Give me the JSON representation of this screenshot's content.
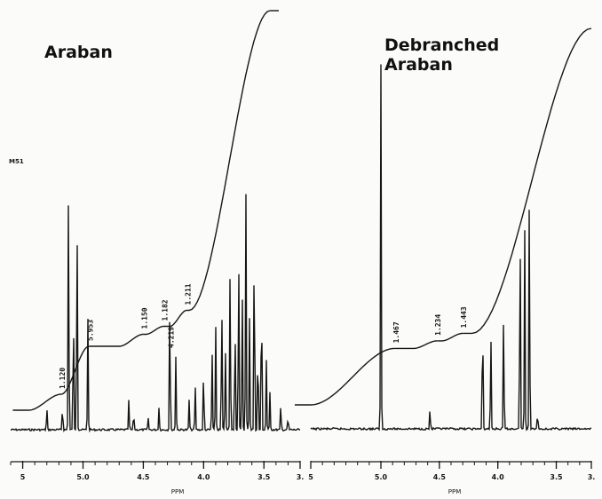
{
  "chart_data": [
    {
      "type": "line",
      "title": "Araban",
      "xlabel": "PPM",
      "x_unit_label": "PPM",
      "y_marker_label": "M51",
      "x_direction": "reversed",
      "xlim": [
        5.6,
        3.2
      ],
      "ticks": [
        {
          "value": 5.5,
          "label": "5"
        },
        {
          "value": 5.0,
          "label": "5.0"
        },
        {
          "value": 4.5,
          "label": "4.5"
        },
        {
          "value": 4.0,
          "label": "4.0"
        },
        {
          "value": 3.5,
          "label": "3.5"
        },
        {
          "value": 3.2,
          "label": "3."
        }
      ],
      "peaks": [
        {
          "ppm": 5.3,
          "height": 0.09
        },
        {
          "ppm": 5.17,
          "height": 0.1
        },
        {
          "ppm": 5.12,
          "height": 1.0
        },
        {
          "ppm": 5.08,
          "height": 0.52
        },
        {
          "ppm": 5.05,
          "height": 0.93
        },
        {
          "ppm": 4.96,
          "height": 0.45
        },
        {
          "ppm": 4.62,
          "height": 0.12
        },
        {
          "ppm": 4.58,
          "height": 0.07
        },
        {
          "ppm": 4.46,
          "height": 0.05
        },
        {
          "ppm": 4.37,
          "height": 0.09
        },
        {
          "ppm": 4.28,
          "height": 0.55
        },
        {
          "ppm": 4.23,
          "height": 0.3
        },
        {
          "ppm": 4.12,
          "height": 0.12
        },
        {
          "ppm": 4.07,
          "height": 0.18
        },
        {
          "ppm": 4.0,
          "height": 0.25
        },
        {
          "ppm": 3.93,
          "height": 0.32
        },
        {
          "ppm": 3.9,
          "height": 0.42
        },
        {
          "ppm": 3.85,
          "height": 0.55
        },
        {
          "ppm": 3.82,
          "height": 0.35
        },
        {
          "ppm": 3.78,
          "height": 0.68
        },
        {
          "ppm": 3.74,
          "height": 0.48
        },
        {
          "ppm": 3.71,
          "height": 0.76
        },
        {
          "ppm": 3.68,
          "height": 0.58
        },
        {
          "ppm": 3.65,
          "height": 0.98
        },
        {
          "ppm": 3.62,
          "height": 0.45
        },
        {
          "ppm": 3.58,
          "height": 0.85
        },
        {
          "ppm": 3.55,
          "height": 0.38
        },
        {
          "ppm": 3.52,
          "height": 0.62
        },
        {
          "ppm": 3.48,
          "height": 0.28
        },
        {
          "ppm": 3.45,
          "height": 0.15
        },
        {
          "ppm": 3.36,
          "height": 0.1
        },
        {
          "ppm": 3.3,
          "height": 0.05
        }
      ],
      "integral_steps": [
        {
          "from": 5.45,
          "to": 5.18,
          "label": "1.120"
        },
        {
          "from": 5.18,
          "to": 4.95,
          "label": "5.953"
        },
        {
          "from": 4.7,
          "to": 4.5,
          "label": "1.150"
        },
        {
          "from": 4.48,
          "to": 4.33,
          "label": "1.182"
        },
        {
          "from": 4.28,
          "to": 4.14,
          "label": "1.211"
        },
        {
          "from": 4.12,
          "to": 3.45,
          "label": ""
        }
      ],
      "peak_labels": [
        {
          "ppm": 4.28,
          "label": "4.219"
        }
      ]
    },
    {
      "type": "line",
      "title": "Debranched\nAraban",
      "xlabel": "PPM",
      "x_unit_label": "PPM",
      "x_direction": "reversed",
      "xlim": [
        5.6,
        3.2
      ],
      "ticks": [
        {
          "value": 5.6,
          "label": "5"
        },
        {
          "value": 5.0,
          "label": "5.0"
        },
        {
          "value": 4.5,
          "label": "4.5"
        },
        {
          "value": 4.0,
          "label": "4.0"
        },
        {
          "value": 3.5,
          "label": "3.5"
        },
        {
          "value": 3.2,
          "label": "3."
        }
      ],
      "peaks": [
        {
          "ppm": 5.0,
          "height": 1.0
        },
        {
          "ppm": 4.58,
          "height": 0.06
        },
        {
          "ppm": 4.13,
          "height": 0.36
        },
        {
          "ppm": 4.06,
          "height": 0.28
        },
        {
          "ppm": 3.95,
          "height": 0.34
        },
        {
          "ppm": 3.81,
          "height": 0.62
        },
        {
          "ppm": 3.77,
          "height": 0.55
        },
        {
          "ppm": 3.73,
          "height": 0.69
        },
        {
          "ppm": 3.66,
          "height": 0.05
        }
      ],
      "integral_steps": [
        {
          "from": 5.6,
          "to": 4.88,
          "label": "1.467"
        },
        {
          "from": 4.72,
          "to": 4.52,
          "label": "1.234"
        },
        {
          "from": 4.48,
          "to": 4.3,
          "label": "1.443"
        },
        {
          "from": 4.22,
          "to": 3.2,
          "label": ""
        }
      ],
      "peak_labels": []
    }
  ]
}
